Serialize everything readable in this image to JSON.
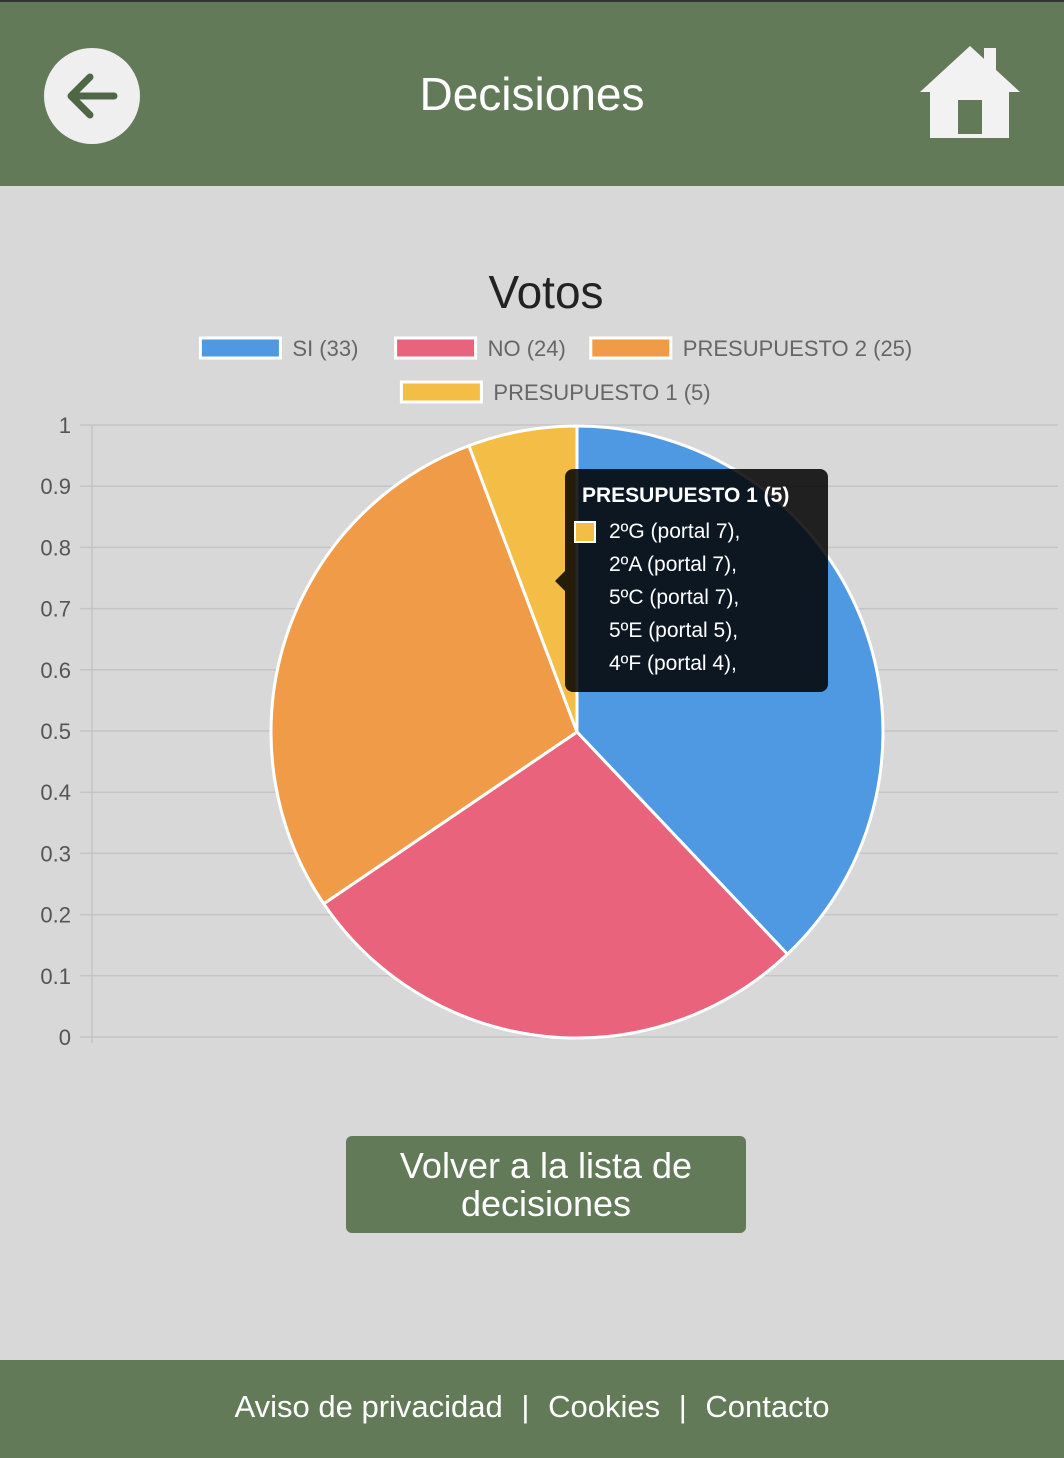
{
  "header": {
    "title": "Decisiones",
    "back_icon": "arrow-left-icon",
    "home_icon": "home-icon"
  },
  "chart_data": {
    "type": "pie",
    "title": "Votos",
    "legend_position": "top",
    "labels": [
      "SI (33)",
      "NO (24)",
      "PRESUPUESTO 2 (25)",
      "PRESUPUESTO 1 (5)"
    ],
    "values": [
      33,
      24,
      25,
      5
    ],
    "colors": [
      "#4f98e2",
      "#e8637b",
      "#f09b47",
      "#f3bd46"
    ],
    "y_ticks": [
      "1",
      "0.9",
      "0.8",
      "0.7",
      "0.6",
      "0.5",
      "0.4",
      "0.3",
      "0.2",
      "0.1",
      "0"
    ],
    "ylim": [
      0,
      1
    ],
    "grid": true,
    "tooltip": {
      "title": "PRESUPUESTO 1 (5)",
      "lines": [
        "2ºG (portal 7),",
        "2ºA (portal 7),",
        "5ºC (portal 7),",
        "5ºE (portal 5),",
        "4ºF (portal 4),"
      ]
    }
  },
  "actions": {
    "back_to_list": "Volver a la lista de decisiones"
  },
  "footer": {
    "privacy": "Aviso de privacidad",
    "cookies": "Cookies",
    "contact": "Contacto",
    "separator": "|"
  },
  "colors": {
    "header_bg": "#627a58",
    "page_bg": "#d8d8d8"
  }
}
